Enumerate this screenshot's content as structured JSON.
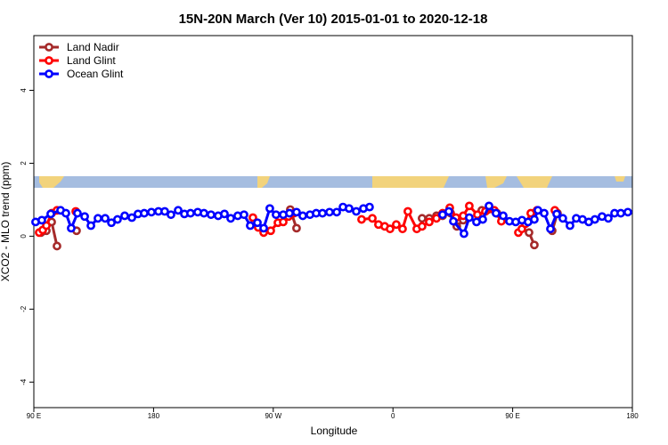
{
  "chart_data": {
    "type": "line",
    "title": "15N-20N March (Ver 10)   2015-01-01 to 2020-12-18",
    "x_label": "Longitude",
    "y_label": "XCO2 - MLO trend (ppm)",
    "xlim": [
      90,
      540
    ],
    "ylim": [
      -4.7,
      5.5
    ],
    "xticks": [
      {
        "value": 90,
        "label": "90 E"
      },
      180,
      {
        "value": 270,
        "label": "90 W"
      },
      {
        "value": 360,
        "label": "0"
      },
      {
        "value": 450,
        "label": "90 E"
      },
      {
        "value": 540,
        "label": "180"
      }
    ],
    "yticks": [
      -4,
      -2,
      0,
      2,
      4
    ],
    "legend": "top-left",
    "series": [
      {
        "name": "Land Nadir",
        "color": "#a52a2a",
        "x": [
          95.4,
          99.4,
          103.4,
          107.4,
          null,
          122.1,
          null,
          282.8,
          287.5,
          null,
          381.9,
          387.3,
          392.7,
          397.3,
          403.4,
          408.0,
          412.8,
          null,
          426.8,
          431.5,
          438.2,
          null,
          462.3,
          466.3,
          null,
          479.7,
          483.7
        ],
        "values": [
          0.1,
          0.15,
          0.39,
          -0.27,
          null,
          0.15,
          null,
          0.73,
          0.22,
          null,
          0.49,
          0.49,
          0.56,
          0.56,
          0.63,
          0.27,
          0.44,
          null,
          0.71,
          0.73,
          0.63,
          null,
          0.1,
          -0.24,
          null,
          0.15,
          0.63
        ]
      },
      {
        "name": "Land Glint",
        "color": "#ff0000",
        "x": [
          94.0,
          96.7,
          99.4,
          103.4,
          107.4,
          null,
          121.5,
          null,
          254.7,
          258.7,
          262.8,
          268.1,
          273.5,
          277.5,
          281.5,
          285.5,
          null,
          336.4,
          344.5,
          349.1,
          353.8,
          357.8,
          362.5,
          367.2,
          371.2,
          377.9,
          381.9,
          387.3,
          392.7,
          397.3,
          402.7,
          407.4,
          412.8,
          417.4,
          423.5,
          429.5,
          436.2,
          441.5,
          null,
          454.3,
          456.9,
          459.6,
          463.6,
          468.3,
          null,
          481.7
        ],
        "values": [
          0.1,
          0.17,
          0.29,
          0.63,
          0.71,
          null,
          0.68,
          null,
          0.51,
          0.24,
          0.1,
          0.15,
          0.37,
          0.39,
          0.54,
          0.63,
          null,
          0.46,
          0.49,
          0.32,
          0.27,
          0.2,
          0.32,
          0.2,
          0.68,
          0.2,
          0.27,
          0.39,
          0.49,
          0.63,
          0.78,
          0.51,
          0.56,
          0.83,
          0.59,
          0.68,
          0.71,
          0.41,
          null,
          0.1,
          0.2,
          0.34,
          0.63,
          0.71,
          null,
          0.71
        ]
      },
      {
        "name": "Ocean Glint",
        "color": "#0000ff",
        "x": [
          91.3,
          96.0,
          102.7,
          110.1,
          114.1,
          118.1,
          122.8,
          128.2,
          132.9,
          138.2,
          143.6,
          148.3,
          152.9,
          158.3,
          163.7,
          168.3,
          173.0,
          178.4,
          183.7,
          188.4,
          193.1,
          198.5,
          203.2,
          207.8,
          213.2,
          217.9,
          223.2,
          228.6,
          233.3,
          238.0,
          243.3,
          248.0,
          252.7,
          258.1,
          262.8,
          267.4,
          272.1,
          277.5,
          282.2,
          287.5,
          292.2,
          297.6,
          302.3,
          307.0,
          312.3,
          317.7,
          322.4,
          327.0,
          332.4,
          337.8,
          342.4,
          null,
          397.3,
          402.0,
          405.4,
          413.4,
          417.4,
          422.8,
          427.5,
          432.2,
          437.5,
          442.9,
          447.6,
          452.3,
          457.0,
          461.6,
          466.3,
          469.0,
          473.7,
          478.4,
          483.1,
          487.7,
          493.1,
          497.8,
          502.5,
          507.2,
          511.8,
          517.2,
          521.9,
          526.6,
          531.3,
          536.6
        ],
        "values": [
          0.39,
          0.44,
          0.61,
          0.71,
          0.63,
          0.22,
          0.63,
          0.54,
          0.29,
          0.49,
          0.49,
          0.37,
          0.46,
          0.56,
          0.51,
          0.61,
          0.63,
          0.66,
          0.68,
          0.68,
          0.59,
          0.71,
          0.61,
          0.63,
          0.66,
          0.63,
          0.59,
          0.56,
          0.61,
          0.49,
          0.56,
          0.59,
          0.29,
          0.37,
          0.22,
          0.76,
          0.59,
          0.59,
          0.63,
          0.66,
          0.56,
          0.59,
          0.63,
          0.63,
          0.66,
          0.66,
          0.8,
          0.76,
          0.68,
          0.76,
          0.8,
          null,
          0.59,
          0.68,
          0.41,
          0.07,
          0.51,
          0.39,
          0.46,
          0.83,
          0.63,
          0.56,
          0.41,
          0.39,
          0.44,
          0.39,
          0.46,
          0.71,
          0.63,
          0.2,
          0.61,
          0.49,
          0.29,
          0.49,
          0.46,
          0.39,
          0.46,
          0.54,
          0.49,
          0.63,
          0.63,
          0.66
        ]
      }
    ]
  }
}
